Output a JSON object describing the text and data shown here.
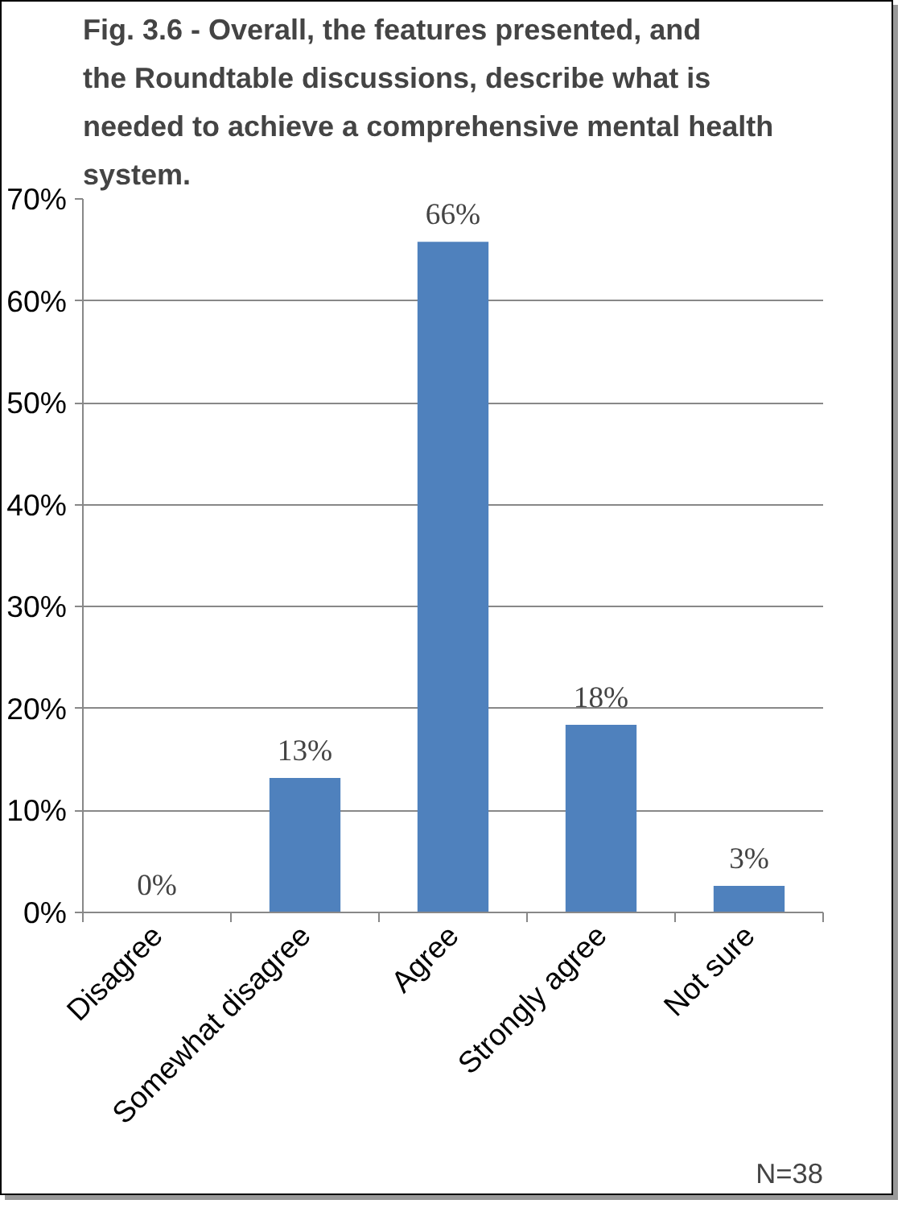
{
  "chart_data": {
    "type": "bar",
    "title": "Fig. 3.6 - Overall, the features presented, and the Roundtable discussions, describe what is needed to achieve a comprehensive mental health system.",
    "categories": [
      "Disagree",
      "Somewhat disagree",
      "Agree",
      "Strongly agree",
      "Not sure"
    ],
    "values": [
      0,
      13.2,
      65.8,
      18.4,
      2.6
    ],
    "value_labels": [
      "0%",
      "13%",
      "66%",
      "18%",
      "3%"
    ],
    "color": "#4f81bd",
    "ylim": [
      0,
      70
    ],
    "yticks": [
      {
        "value": 0,
        "label": "0%"
      },
      {
        "value": 10,
        "label": "10%"
      },
      {
        "value": 20,
        "label": "20%"
      },
      {
        "value": 30,
        "label": "30%"
      },
      {
        "value": 40,
        "label": "40%"
      },
      {
        "value": 50,
        "label": "50%"
      },
      {
        "value": 60,
        "label": "60%"
      },
      {
        "value": 70,
        "label": "70%"
      }
    ],
    "grid": "y",
    "annotations": [
      "N=38"
    ]
  }
}
